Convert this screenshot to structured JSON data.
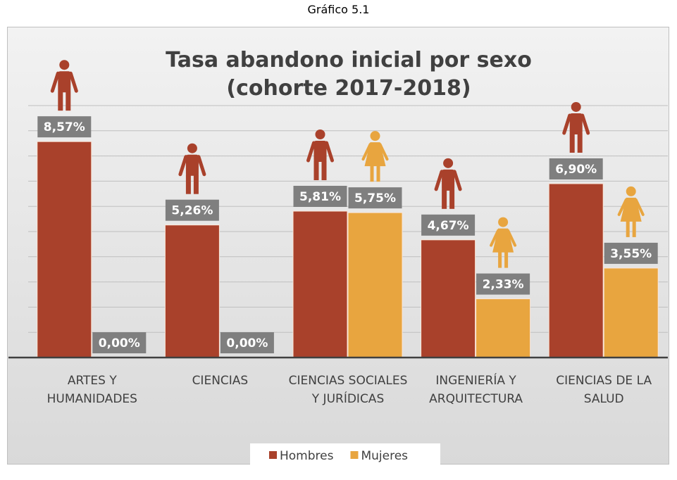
{
  "caption": "Gráfico 5.1",
  "chart_data": {
    "type": "bar",
    "title": "Tasa abandono inicial por sexo (cohorte 2017-2018)",
    "categories": [
      "ARTES Y HUMANIDADES",
      "CIENCIAS",
      "CIENCIAS SOCIALES Y JURÍDICAS",
      "INGENIERÍA Y ARQUITECTURA",
      "CIENCIAS DE LA SALUD"
    ],
    "series": [
      {
        "name": "Hombres",
        "color": "#a9412b",
        "values": [
          8.57,
          5.26,
          5.81,
          4.67,
          6.9
        ],
        "value_labels": [
          "8,57%",
          "5,26%",
          "5,81%",
          "4,67%",
          "6,90%"
        ]
      },
      {
        "name": "Mujeres",
        "color": "#e8a53f",
        "values": [
          0,
          0,
          5.75,
          2.33,
          3.55
        ],
        "value_labels": [
          "0,00%",
          "0,00%",
          "5,75%",
          "2,33%",
          "3,55%"
        ]
      }
    ],
    "ylim": [
      0,
      10
    ],
    "yticks": [
      0,
      1,
      2,
      3,
      4,
      5,
      6,
      7,
      8,
      9,
      10
    ],
    "grid": true,
    "legend": "bottom"
  }
}
